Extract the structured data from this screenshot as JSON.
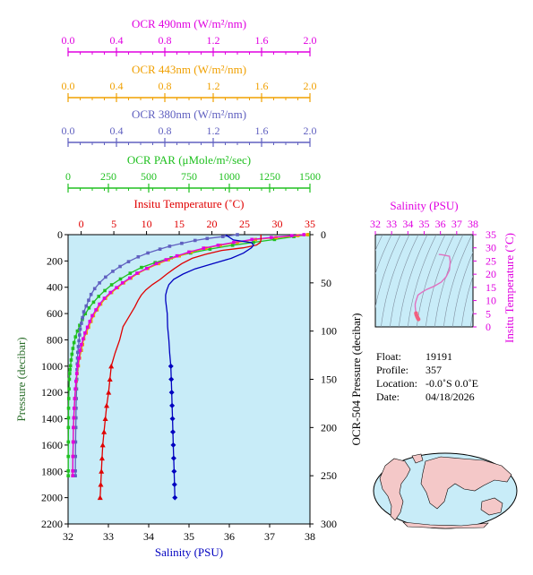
{
  "colors": {
    "ocr490": "#e000e0",
    "ocr443": "#f0a000",
    "ocr380": "#6060c0",
    "par": "#20c020",
    "temperature": "#e00000",
    "salinity": "#0000c0",
    "ocr_pressure": "#000000",
    "plot_bg": "#c8ecf8",
    "ts_fit": "#e070c0"
  },
  "float_info": {
    "float_label": "Float:",
    "float_value": "19191",
    "profile_label": "Profile:",
    "profile_value": "357",
    "location_label": "Location:",
    "location_value": "-0.0˚S   0.0˚E",
    "date_label": "Date:",
    "date_value": "04/18/2026"
  },
  "chart_data": [
    {
      "type": "line",
      "panel": "profile",
      "y_axis_left": {
        "label": "Pressure (decibar)",
        "range": [
          0,
          2200
        ],
        "reversed": true,
        "ticks": [
          0,
          200,
          400,
          600,
          800,
          1000,
          1200,
          1400,
          1600,
          1800,
          2000,
          2200
        ]
      },
      "y_axis_right": {
        "label": "OCR-504 Pressure (decibar)",
        "range": [
          0,
          300
        ],
        "reversed": true,
        "ticks": [
          0,
          50,
          100,
          150,
          200,
          250,
          300
        ]
      },
      "x_axes": [
        {
          "key": "salinity",
          "label": "Salinity (PSU)",
          "position": "bottom",
          "range": [
            32,
            38
          ],
          "ticks": [
            32,
            33,
            34,
            35,
            36,
            37,
            38
          ]
        },
        {
          "key": "temperature",
          "label": "Insitu Temperature (˚C)",
          "position": "top",
          "range": [
            -2,
            35
          ],
          "ticks": [
            0,
            5,
            10,
            15,
            20,
            25,
            30,
            35
          ]
        },
        {
          "key": "par",
          "label": "OCR PAR (μMole/m²/sec)",
          "position": "top",
          "range": [
            0,
            1500
          ],
          "ticks": [
            0,
            250,
            500,
            750,
            1000,
            1250,
            1500
          ]
        },
        {
          "key": "ocr380",
          "label": "OCR 380nm (W/m²/nm)",
          "position": "top",
          "range": [
            0,
            2.0
          ],
          "ticks": [
            "0.0",
            "0.4",
            "0.8",
            "1.2",
            "1.6",
            "2.0"
          ]
        },
        {
          "key": "ocr443",
          "label": "OCR 443nm (W/m²/nm)",
          "position": "top",
          "range": [
            0,
            2.0
          ],
          "ticks": [
            "0.0",
            "0.4",
            "0.8",
            "1.2",
            "1.6",
            "2.0"
          ]
        },
        {
          "key": "ocr490",
          "label": "OCR 490nm (W/m²/nm)",
          "position": "top",
          "range": [
            0,
            2.0
          ],
          "ticks": [
            "0.0",
            "0.4",
            "0.8",
            "1.2",
            "1.6",
            "2.0"
          ]
        }
      ],
      "series": [
        {
          "key": "temperature",
          "pressure": [
            0,
            40,
            60,
            80,
            100,
            120,
            150,
            180,
            220,
            260,
            300,
            340,
            380,
            420,
            460,
            500,
            550,
            600,
            650,
            700,
            800,
            900,
            1000,
            1100,
            1200,
            1300,
            1400,
            1500,
            1600,
            1700,
            1800,
            1900,
            2000
          ],
          "values": [
            27.5,
            27.5,
            27.4,
            26.8,
            24.8,
            21.5,
            19.0,
            17.0,
            15.4,
            14.2,
            13.1,
            12.1,
            10.9,
            9.9,
            9.2,
            8.7,
            8.2,
            7.6,
            7.0,
            6.4,
            5.9,
            5.2,
            4.6,
            4.4,
            4.2,
            3.9,
            3.7,
            3.5,
            3.3,
            3.2,
            3.1,
            3.0,
            2.9
          ],
          "markers_from_pressure": 1000
        },
        {
          "key": "salinity",
          "pressure": [
            0,
            40,
            60,
            80,
            100,
            140,
            180,
            220,
            260,
            300,
            340,
            380,
            420,
            460,
            500,
            550,
            600,
            700,
            800,
            900,
            1000,
            1100,
            1200,
            1300,
            1400,
            1500,
            1600,
            1700,
            1800,
            1900,
            2000
          ],
          "values": [
            35.9,
            36.1,
            36.55,
            36.6,
            36.55,
            36.35,
            36.05,
            35.6,
            35.15,
            34.85,
            34.62,
            34.5,
            34.45,
            34.42,
            34.42,
            34.44,
            34.46,
            34.47,
            34.5,
            34.52,
            34.55,
            34.56,
            34.57,
            34.58,
            34.59,
            34.6,
            34.61,
            34.62,
            34.63,
            34.64,
            34.65
          ],
          "markers_from_pressure": 1000
        },
        {
          "key": "par",
          "ocr_pressure": [
            0,
            2,
            5,
            8,
            11,
            15,
            19,
            24,
            29,
            34,
            40,
            46,
            52,
            58,
            64,
            70,
            76,
            82,
            88,
            94,
            100,
            106,
            112,
            118,
            124,
            130,
            136,
            140,
            144,
            150,
            160,
            170,
            180,
            190,
            200,
            215,
            230,
            245,
            250
          ],
          "values": [
            1490,
            1400,
            1280,
            1150,
            1020,
            880,
            760,
            640,
            540,
            455,
            385,
            325,
            270,
            228,
            190,
            158,
            130,
            107,
            88,
            72,
            58,
            46,
            37,
            30,
            24,
            19,
            15,
            12,
            10,
            8,
            6,
            4,
            3,
            2.5,
            2,
            1.5,
            1.2,
            1.0,
            1.0
          ]
        },
        {
          "key": "ocr380",
          "ocr_pressure": [
            0,
            2,
            4,
            6,
            9,
            12,
            15,
            19,
            23,
            28,
            33,
            38,
            44,
            50,
            56,
            62,
            68,
            74,
            80,
            86,
            92,
            98,
            104,
            110,
            116,
            122,
            128,
            134,
            140,
            150,
            160,
            170,
            180,
            190,
            200,
            215,
            230,
            245,
            250
          ],
          "values": [
            1.4,
            1.28,
            1.15,
            1.05,
            0.94,
            0.84,
            0.76,
            0.66,
            0.58,
            0.5,
            0.43,
            0.37,
            0.31,
            0.26,
            0.22,
            0.19,
            0.17,
            0.15,
            0.13,
            0.12,
            0.11,
            0.1,
            0.095,
            0.09,
            0.085,
            0.08,
            0.078,
            0.076,
            0.074,
            0.072,
            0.07,
            0.068,
            0.066,
            0.065,
            0.064,
            0.062,
            0.061,
            0.06,
            0.06
          ]
        },
        {
          "key": "ocr443",
          "ocr_pressure": [
            0,
            1,
            3,
            5,
            8,
            11,
            14,
            18,
            22,
            26,
            30,
            35,
            40,
            45,
            50,
            55,
            60,
            66,
            72,
            78,
            84,
            90,
            96,
            102,
            108,
            114,
            120,
            128,
            136,
            144,
            152,
            160,
            170,
            180,
            190,
            200,
            215,
            230,
            245,
            250
          ],
          "values": [
            1.98,
            1.9,
            1.72,
            1.55,
            1.4,
            1.26,
            1.14,
            1.02,
            0.92,
            0.83,
            0.75,
            0.66,
            0.58,
            0.52,
            0.46,
            0.41,
            0.36,
            0.31,
            0.27,
            0.24,
            0.21,
            0.19,
            0.17,
            0.15,
            0.13,
            0.12,
            0.11,
            0.095,
            0.085,
            0.075,
            0.068,
            0.062,
            0.056,
            0.052,
            0.048,
            0.045,
            0.042,
            0.04,
            0.038,
            0.038
          ]
        },
        {
          "key": "ocr490",
          "ocr_pressure": [
            0,
            1,
            3,
            5,
            8,
            11,
            14,
            18,
            22,
            26,
            30,
            35,
            40,
            45,
            50,
            55,
            60,
            66,
            72,
            78,
            84,
            90,
            96,
            102,
            108,
            114,
            120,
            128,
            136,
            144,
            152,
            160,
            170,
            180,
            190,
            200,
            215,
            230,
            245,
            250
          ],
          "values": [
            1.95,
            1.85,
            1.68,
            1.52,
            1.37,
            1.24,
            1.12,
            1.0,
            0.9,
            0.81,
            0.73,
            0.65,
            0.57,
            0.51,
            0.45,
            0.4,
            0.35,
            0.3,
            0.26,
            0.23,
            0.2,
            0.18,
            0.16,
            0.14,
            0.125,
            0.11,
            0.1,
            0.09,
            0.08,
            0.072,
            0.065,
            0.06,
            0.055,
            0.05,
            0.047,
            0.044,
            0.042,
            0.04,
            0.039,
            0.039
          ]
        }
      ]
    },
    {
      "type": "scatter",
      "panel": "ts_diagram",
      "x_axis": {
        "label": "Salinity (PSU)",
        "position": "top",
        "range": [
          32,
          38
        ],
        "ticks": [
          32,
          33,
          34,
          35,
          36,
          37,
          38
        ]
      },
      "y_axis": {
        "label": "Insitu Temperature (˚C)",
        "position": "right",
        "range": [
          0,
          35
        ],
        "ticks": [
          0,
          5,
          10,
          15,
          20,
          25,
          30,
          35
        ]
      },
      "density_contours": true,
      "salinity": [
        34.65,
        34.62,
        34.58,
        34.55,
        34.52,
        34.5,
        34.47,
        34.45,
        34.45,
        34.5,
        34.62,
        34.85,
        35.15,
        35.6,
        36.05,
        36.35,
        36.55,
        36.6,
        36.55,
        36.1,
        35.9
      ],
      "temperature": [
        2.9,
        3.2,
        3.7,
        4.2,
        4.6,
        5.2,
        6.4,
        7.6,
        8.7,
        9.9,
        12.1,
        13.1,
        14.2,
        15.4,
        17.0,
        19.0,
        21.5,
        24.8,
        26.8,
        27.4,
        27.5
      ]
    }
  ]
}
